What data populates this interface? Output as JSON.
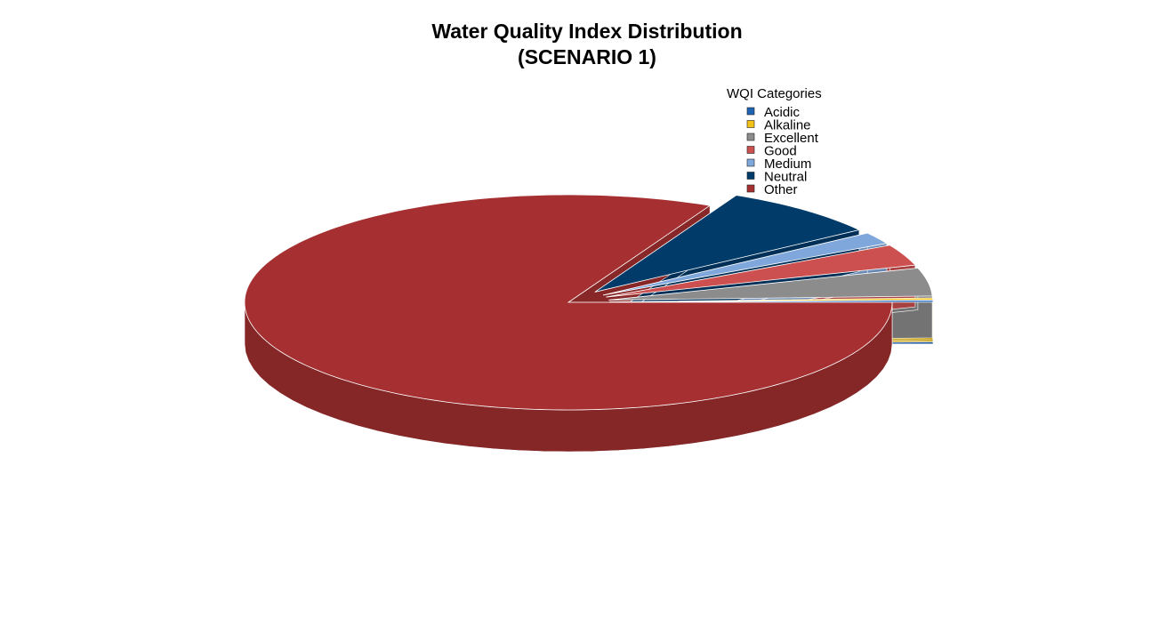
{
  "chart_data": {
    "type": "pie",
    "title": "Water Quality Index Distribution",
    "subtitle": "(SCENARIO 1)",
    "legend_title": "WQI Categories",
    "legend_position": "top-right",
    "three_d": true,
    "categories": [
      "Acidic",
      "Alkaline",
      "Excellent",
      "Good",
      "Medium",
      "Neutral",
      "Other"
    ],
    "values": [
      0.3,
      0.3,
      4.2,
      3.2,
      1.8,
      8.0,
      82.2
    ],
    "colors": [
      "#1f63b5",
      "#f2c218",
      "#8c8c8c",
      "#cd5050",
      "#7fa7dc",
      "#003b6a",
      "#a63031"
    ],
    "exploded": [
      "Acidic",
      "Alkaline",
      "Excellent",
      "Good",
      "Medium",
      "Neutral"
    ]
  }
}
